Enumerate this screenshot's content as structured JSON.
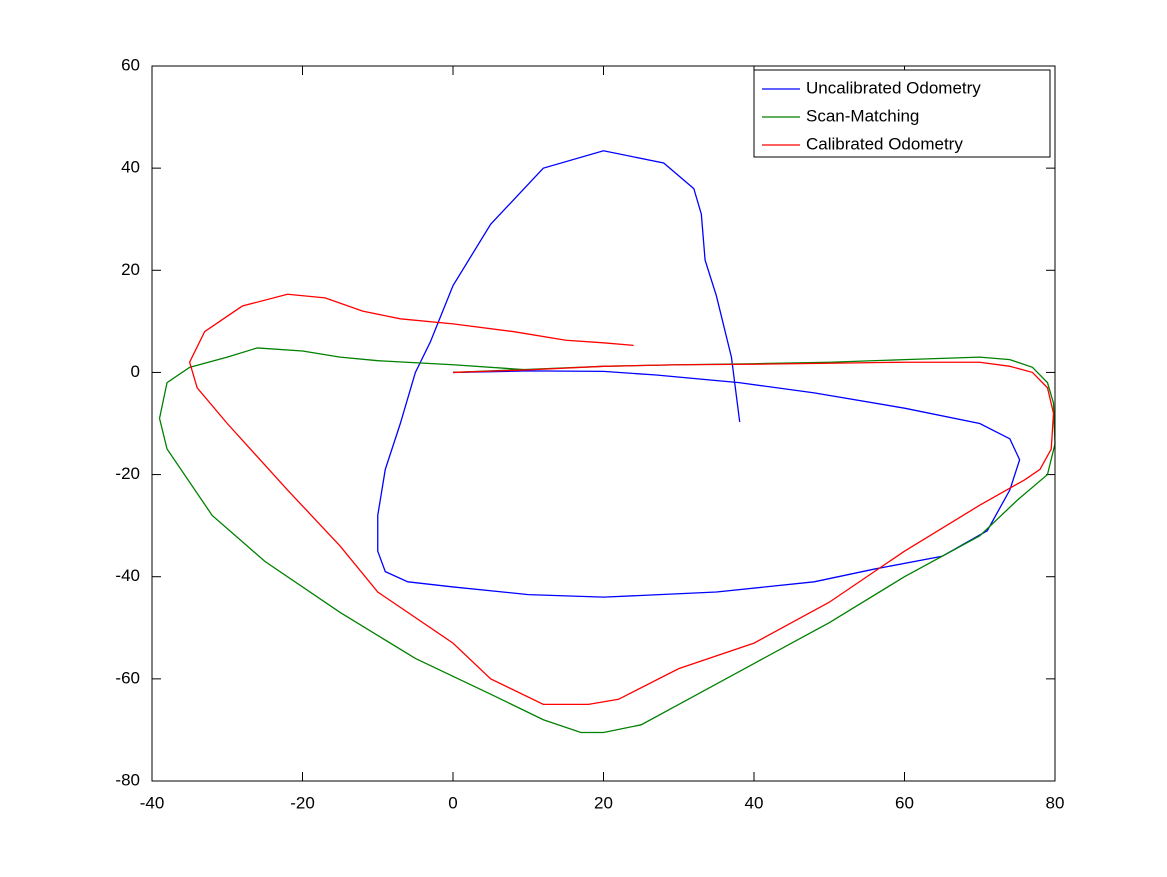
{
  "chart_data": {
    "type": "line",
    "xlim": [
      -40,
      80
    ],
    "ylim": [
      -80,
      60
    ],
    "xticks": [
      -40,
      -20,
      0,
      20,
      40,
      60,
      80
    ],
    "yticks": [
      -80,
      -60,
      -40,
      -20,
      0,
      20,
      40,
      60
    ],
    "legend": "upper right",
    "series": [
      {
        "name": "Uncalibrated Odometry",
        "color": "#0000ff",
        "x": [
          0,
          10,
          20,
          27,
          38,
          48,
          60,
          70,
          74,
          75.3,
          74,
          71,
          65,
          56,
          48,
          35,
          20,
          10,
          0,
          -6,
          -9,
          -10,
          -10,
          -9,
          -7,
          -5,
          -3,
          0,
          5,
          12,
          20,
          28,
          32,
          33,
          33.5,
          35,
          37,
          38.1
        ],
        "values": [
          0,
          0.3,
          0.2,
          -0.5,
          -2,
          -4,
          -7,
          -10,
          -13,
          -17.1,
          -23,
          -31,
          -36,
          -38.5,
          -41,
          -43,
          -44,
          -43.5,
          -42,
          -41,
          -39,
          -35,
          -28,
          -19,
          -10,
          0,
          6,
          17,
          29,
          40,
          43.4,
          41,
          36,
          31,
          22,
          15,
          3,
          -9.7
        ]
      },
      {
        "name": "Scan-Matching",
        "color": "#008000",
        "x": [
          0,
          10,
          20,
          30,
          40,
          50,
          60,
          70,
          74,
          77,
          79,
          79.8,
          80,
          79,
          75,
          70,
          60,
          50,
          40,
          30,
          25,
          20,
          17,
          12,
          5,
          -5,
          -15,
          -25,
          -32,
          -38,
          -39,
          -38,
          -35,
          -30,
          -26,
          -20,
          -15,
          -10,
          0,
          10
        ],
        "values": [
          0,
          0.6,
          1.2,
          1.5,
          1.7,
          2,
          2.5,
          3,
          2.5,
          1,
          -2,
          -6,
          -14,
          -20,
          -25,
          -32,
          -40,
          -49,
          -57,
          -65,
          -69,
          -70.5,
          -70.5,
          -68,
          -63,
          -56,
          -47,
          -37,
          -28,
          -15,
          -9,
          -2,
          1,
          3,
          4.8,
          4.2,
          3,
          2.3,
          1.5,
          0.5
        ]
      },
      {
        "name": "Calibrated Odometry",
        "color": "#ff0000",
        "x": [
          0,
          10,
          20,
          30,
          40,
          50,
          60,
          70,
          74,
          77,
          79,
          79.8,
          79.5,
          78,
          76,
          70,
          60,
          50,
          40,
          30,
          22,
          18,
          12,
          5,
          0,
          -10,
          -15,
          -22,
          -30,
          -34,
          -35,
          -33,
          -28,
          -22,
          -17,
          -12,
          -7,
          0,
          8,
          15,
          20,
          24
        ],
        "values": [
          0,
          0.5,
          1.2,
          1.5,
          1.6,
          1.8,
          2,
          2,
          1.2,
          0,
          -3,
          -8,
          -15,
          -19,
          -21,
          -26,
          -35,
          -45,
          -53,
          -58,
          -64,
          -65,
          -65,
          -60,
          -53,
          -43,
          -34,
          -23,
          -10,
          -3,
          2,
          8,
          13,
          15.3,
          14.6,
          12,
          10.5,
          9.5,
          8,
          6.3,
          5.8,
          5.3
        ]
      }
    ]
  }
}
